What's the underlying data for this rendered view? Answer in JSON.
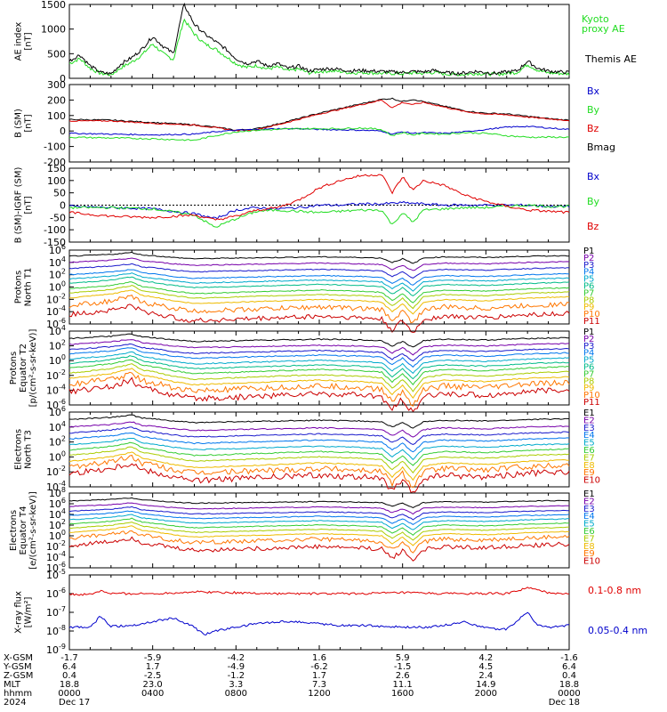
{
  "colors": {
    "black": "#000000",
    "red": "#e00000",
    "green": "#22dd22",
    "blue": "#0000cc"
  },
  "chart_data": [
    {
      "type": "line",
      "panel": "ae",
      "ylabel": "AE index\n[nT]",
      "yrange": [
        0,
        1500
      ],
      "yticks": [
        "1500",
        "1000",
        "500",
        "0"
      ],
      "legend": [
        {
          "name": "Kyoto\nproxy AE",
          "color": "#22dd22"
        },
        {
          "name": "Themis AE",
          "color": "#000000"
        }
      ],
      "series": [
        {
          "name": "Themis AE",
          "color": "#000000",
          "x_hours": [
            0,
            0.5,
            1,
            1.5,
            2,
            2.5,
            3,
            3.5,
            4,
            4.5,
            5,
            5.5,
            6,
            6.5,
            7,
            7.5,
            8,
            8.5,
            9,
            9.5,
            10,
            10.5,
            11,
            11.5,
            12,
            12.5,
            13,
            13.5,
            14,
            14.5,
            15,
            15.5,
            16,
            16.5,
            17,
            17.5,
            18,
            18.5,
            19,
            19.5,
            20,
            20.5,
            21,
            21.5,
            22,
            22.5,
            23,
            23.5,
            24
          ],
          "y": [
            350,
            480,
            250,
            120,
            90,
            300,
            420,
            600,
            850,
            650,
            500,
            1500,
            1100,
            900,
            750,
            600,
            400,
            300,
            350,
            250,
            300,
            200,
            250,
            150,
            180,
            200,
            180,
            150,
            160,
            150,
            140,
            130,
            120,
            140,
            130,
            160,
            120,
            100,
            110,
            140,
            120,
            100,
            130,
            150,
            350,
            200,
            150,
            130,
            120
          ]
        },
        {
          "name": "Kyoto proxy AE",
          "color": "#22dd22",
          "x_hours": [
            0,
            0.5,
            1,
            1.5,
            2,
            2.5,
            3,
            3.5,
            4,
            4.5,
            5,
            5.5,
            6,
            6.5,
            7,
            7.5,
            8,
            8.5,
            9,
            9.5,
            10,
            10.5,
            11,
            11.5,
            12,
            12.5,
            13,
            13.5,
            14,
            14.5,
            15,
            15.5,
            16,
            16.5,
            17,
            17.5,
            18,
            18.5,
            19,
            19.5,
            20,
            20.5,
            21,
            21.5,
            22,
            22.5,
            23,
            23.5,
            24
          ],
          "y": [
            300,
            400,
            200,
            100,
            70,
            220,
            330,
            480,
            700,
            500,
            380,
            1200,
            900,
            700,
            600,
            450,
            300,
            220,
            260,
            190,
            230,
            150,
            190,
            110,
            140,
            150,
            140,
            110,
            120,
            110,
            100,
            100,
            90,
            110,
            100,
            120,
            90,
            80,
            80,
            100,
            90,
            80,
            100,
            120,
            280,
            160,
            110,
            100,
            90
          ]
        }
      ]
    },
    {
      "type": "line",
      "panel": "bsm",
      "ylabel": "B (SM)\n[nT]",
      "yrange": [
        -200,
        300
      ],
      "yticks": [
        "300",
        "200",
        "100",
        "0",
        "-100",
        "-200"
      ],
      "legend": [
        {
          "name": "Bx",
          "color": "#0000cc"
        },
        {
          "name": "By",
          "color": "#22dd22"
        },
        {
          "name": "Bz",
          "color": "#e00000"
        },
        {
          "name": "Bmag",
          "color": "#000000"
        }
      ],
      "series": [
        {
          "name": "Bmag",
          "color": "#000000",
          "x_hours": [
            0,
            2,
            4,
            6,
            7,
            8,
            9,
            10,
            11,
            12,
            13,
            14,
            15,
            15.5,
            16,
            16.5,
            17,
            18,
            19,
            20,
            21,
            22,
            23,
            24
          ],
          "y": [
            75,
            70,
            55,
            40,
            25,
            5,
            15,
            45,
            80,
            115,
            145,
            175,
            205,
            210,
            190,
            205,
            190,
            160,
            130,
            115,
            110,
            95,
            80,
            70
          ]
        },
        {
          "name": "Bz",
          "color": "#e00000",
          "x_hours": [
            0,
            2,
            4,
            6,
            7,
            8,
            9,
            10,
            11,
            12,
            13,
            14,
            15,
            15.5,
            16,
            16.5,
            17,
            18,
            19,
            20,
            21,
            22,
            23,
            24
          ],
          "y": [
            65,
            65,
            50,
            38,
            22,
            2,
            10,
            40,
            75,
            110,
            140,
            170,
            200,
            150,
            185,
            170,
            185,
            155,
            125,
            110,
            105,
            90,
            78,
            68
          ]
        },
        {
          "name": "Bx",
          "color": "#0000cc",
          "x_hours": [
            0,
            2,
            4,
            6,
            7,
            8,
            9,
            10,
            11,
            12,
            13,
            14,
            15,
            15.5,
            16,
            16.5,
            17,
            18,
            19,
            20,
            21,
            22,
            23,
            24
          ],
          "y": [
            -15,
            -20,
            -25,
            -20,
            -5,
            5,
            10,
            15,
            15,
            10,
            8,
            5,
            0,
            -20,
            -5,
            -15,
            -10,
            -15,
            -5,
            10,
            25,
            30,
            20,
            10
          ]
        },
        {
          "name": "By",
          "color": "#22dd22",
          "x_hours": [
            0,
            2,
            4,
            6,
            7,
            8,
            9,
            10,
            11,
            12,
            13,
            14,
            15,
            15.5,
            16,
            16.5,
            17,
            18,
            19,
            20,
            21,
            22,
            23,
            24
          ],
          "y": [
            -40,
            -45,
            -50,
            -60,
            -30,
            -5,
            5,
            10,
            15,
            15,
            15,
            20,
            10,
            -30,
            -10,
            -25,
            -15,
            -20,
            -10,
            -15,
            -30,
            -40,
            -40,
            -40
          ]
        }
      ]
    },
    {
      "type": "line",
      "panel": "bdiff",
      "ylabel": "B (SM)-IGRF (SM)\n[nT]",
      "yrange": [
        -150,
        150
      ],
      "yticks": [
        "150",
        "100",
        "50",
        "0",
        "-50",
        "-100",
        "-150"
      ],
      "legend": [
        {
          "name": "Bx",
          "color": "#0000cc"
        },
        {
          "name": "By",
          "color": "#22dd22"
        },
        {
          "name": "Bz",
          "color": "#e00000"
        }
      ],
      "series": [
        {
          "name": "Bx",
          "color": "#0000cc",
          "x_hours": [
            0,
            2,
            4,
            6,
            7,
            8,
            9,
            10,
            11,
            12,
            13,
            14,
            15,
            16,
            17,
            18,
            19,
            20,
            21,
            22,
            23,
            24
          ],
          "y": [
            -5,
            -10,
            -15,
            -35,
            -55,
            -20,
            -10,
            -15,
            -10,
            0,
            0,
            5,
            5,
            10,
            5,
            0,
            0,
            0,
            0,
            0,
            -5,
            -5
          ]
        },
        {
          "name": "By",
          "color": "#22dd22",
          "x_hours": [
            0,
            2,
            4,
            6,
            7,
            8,
            9,
            10,
            11,
            12,
            13,
            14,
            15,
            15.5,
            16,
            16.5,
            17,
            18,
            19,
            20,
            21,
            22,
            23,
            24
          ],
          "y": [
            -10,
            -10,
            -15,
            -40,
            -90,
            -55,
            -25,
            -20,
            -25,
            -30,
            -25,
            -20,
            -20,
            -80,
            -30,
            -70,
            -20,
            -15,
            -10,
            -10,
            -5,
            0,
            -5,
            -5
          ]
        },
        {
          "name": "Bz",
          "color": "#e00000",
          "x_hours": [
            0,
            2,
            4,
            6,
            7,
            8,
            9,
            10,
            11,
            12,
            13,
            14,
            15,
            15.5,
            16,
            16.5,
            17,
            18,
            19,
            20,
            21,
            22,
            23,
            24
          ],
          "y": [
            -30,
            -45,
            -50,
            -40,
            -60,
            -45,
            -20,
            -10,
            20,
            70,
            100,
            120,
            125,
            50,
            115,
            60,
            100,
            80,
            40,
            15,
            -5,
            -20,
            -25,
            -30
          ]
        }
      ]
    },
    {
      "type": "line",
      "panel": "p1",
      "ylabel": "Protons\nNorth T1",
      "yscale": "log",
      "ylabel_exponents": [
        6,
        4,
        2,
        0,
        -2,
        -4,
        -6
      ],
      "channels": [
        "P1",
        "P2",
        "P3",
        "P4",
        "P5",
        "P6",
        "P7",
        "P8",
        "P9",
        "P10",
        "P11"
      ],
      "levels_log10": [
        5,
        4,
        3,
        2,
        1.3,
        0.6,
        -0.3,
        -1,
        -1.8,
        -3,
        -4.5
      ]
    },
    {
      "type": "line",
      "panel": "p2",
      "ylabel": "Protons\nEquator T2\n[p/(cm²-s-sr-keV)]",
      "yscale": "log",
      "ylabel_exponents": [
        4,
        2,
        0,
        -2,
        -4,
        -6
      ],
      "channels": [
        "P1",
        "P2",
        "P3",
        "P4",
        "P5",
        "P6",
        "P7",
        "P8",
        "P9",
        "P10",
        "P11"
      ],
      "levels_log10": [
        3,
        2.2,
        1.5,
        0.9,
        0.2,
        -0.4,
        -1,
        -1.7,
        -2.4,
        -3.2,
        -4.2
      ]
    },
    {
      "type": "line",
      "panel": "e1",
      "ylabel": "Electrons\nNorth T3",
      "yscale": "log",
      "ylabel_exponents": [
        6,
        4,
        2,
        0,
        -2,
        -4
      ],
      "channels": [
        "E1",
        "E2",
        "E3",
        "E4",
        "E5",
        "E6",
        "E7",
        "E8",
        "E9",
        "E10"
      ],
      "levels_log10": [
        5,
        4,
        3.2,
        2.4,
        1.6,
        0.9,
        0.2,
        -0.6,
        -1.3,
        -2.2
      ]
    },
    {
      "type": "line",
      "panel": "e2",
      "ylabel": "Electrons\nEquator T4\n[e/(cm²-s-sr-keV)]",
      "yscale": "log",
      "ylabel_exponents": [
        8,
        6,
        4,
        2,
        0,
        -2,
        -4,
        -6
      ],
      "channels": [
        "E1",
        "E2",
        "E3",
        "E4",
        "E5",
        "E6",
        "E7",
        "E8",
        "E9",
        "E10"
      ],
      "levels_log10": [
        6.5,
        5.5,
        4.6,
        3.8,
        3,
        2.2,
        1.4,
        0.6,
        -0.4,
        -1.8
      ]
    },
    {
      "type": "line",
      "panel": "xray",
      "ylabel": "X-ray flux\n[W/m²]",
      "yscale": "log",
      "ylabel_exponents": [
        -5,
        -6,
        -7,
        -8,
        -9
      ],
      "legend": [
        {
          "name": "0.1-0.8 nm",
          "color": "#e00000"
        },
        {
          "name": "0.05-0.4 nm",
          "color": "#0000cc"
        }
      ],
      "series": [
        {
          "name": "0.1-0.8 nm",
          "color": "#e00000",
          "x_hours": [
            0,
            1,
            1.5,
            2,
            4,
            6,
            8,
            10,
            12,
            14,
            16,
            18,
            20,
            21,
            22,
            23,
            24
          ],
          "y_log10": [
            -6.05,
            -6.05,
            -5.85,
            -6.0,
            -6.0,
            -5.9,
            -5.95,
            -6.0,
            -6.0,
            -6.0,
            -5.95,
            -6.0,
            -6.0,
            -6.0,
            -5.7,
            -5.95,
            -6.0
          ]
        },
        {
          "name": "0.05-0.4 nm",
          "color": "#0000cc",
          "x_hours": [
            0,
            1,
            1.5,
            2,
            3,
            4,
            5,
            6,
            6.5,
            7,
            8,
            9,
            10,
            11,
            12,
            13,
            14,
            15,
            16,
            17,
            18,
            19,
            20,
            21,
            22,
            22.5,
            23,
            24
          ],
          "y_log10": [
            -7.8,
            -7.8,
            -7.2,
            -7.75,
            -7.7,
            -7.5,
            -7.3,
            -7.8,
            -8.2,
            -8.0,
            -7.8,
            -7.6,
            -7.5,
            -7.5,
            -7.6,
            -7.7,
            -7.7,
            -7.75,
            -7.8,
            -7.8,
            -7.7,
            -7.5,
            -7.85,
            -7.9,
            -7.0,
            -7.7,
            -7.8,
            -7.7
          ]
        }
      ]
    }
  ],
  "axis": {
    "row_labels": [
      "X-GSM",
      "Y-GSM",
      "Z-GSM",
      "MLT",
      "hhmm",
      "2024"
    ],
    "columns": [
      {
        "x": "-1.7",
        "y": "6.4",
        "z": "0.4",
        "mlt": "18.8",
        "hhmm": "0000",
        "date": "Dec 17"
      },
      {
        "x": "-5.9",
        "y": "1.7",
        "z": "-2.5",
        "mlt": "23.0",
        "hhmm": "0400",
        "date": ""
      },
      {
        "x": "-4.2",
        "y": "-4.9",
        "z": "-1.2",
        "mlt": "3.3",
        "hhmm": "0800",
        "date": ""
      },
      {
        "x": "1.6",
        "y": "-6.2",
        "z": "1.7",
        "mlt": "7.3",
        "hhmm": "1200",
        "date": ""
      },
      {
        "x": "5.9",
        "y": "-1.5",
        "z": "2.6",
        "mlt": "11.1",
        "hhmm": "1600",
        "date": ""
      },
      {
        "x": "4.2",
        "y": "4.5",
        "z": "2.4",
        "mlt": "14.9",
        "hhmm": "2000",
        "date": ""
      },
      {
        "x": "-1.6",
        "y": "6.4",
        "z": "0.4",
        "mlt": "18.8",
        "hhmm": "0000",
        "date": "Dec 18"
      }
    ]
  }
}
